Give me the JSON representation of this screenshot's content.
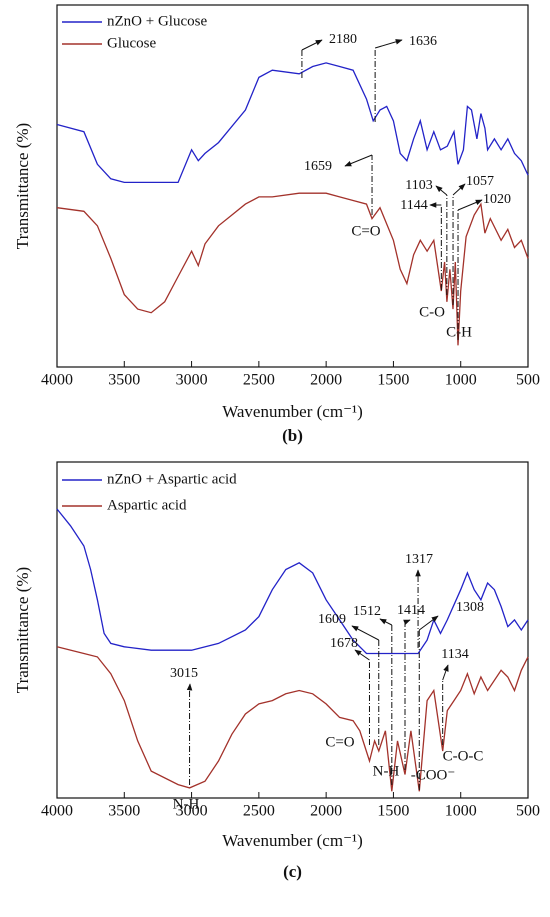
{
  "chart_data": [
    {
      "type": "line",
      "xlabel": "Wavenumber (cm⁻¹)",
      "ylabel": "Transmittance (%)",
      "caption": "(b)",
      "xlim": [
        4000,
        500
      ],
      "ylim": [
        0,
        100
      ],
      "xticks": [
        4000,
        3500,
        3000,
        2500,
        2000,
        1500,
        1000,
        500
      ],
      "series": [
        {
          "name": "nZnO + Glucose",
          "color": "#2323c8",
          "x": [
            4000,
            3800,
            3700,
            3600,
            3500,
            3100,
            3000,
            2950,
            2900,
            2800,
            2600,
            2500,
            2400,
            2200,
            2100,
            2000,
            1900,
            1800,
            1700,
            1650,
            1600,
            1550,
            1500,
            1450,
            1400,
            1350,
            1300,
            1250,
            1200,
            1150,
            1100,
            1050,
            1020,
            980,
            950,
            920,
            880,
            850,
            820,
            800,
            750,
            700,
            650,
            600,
            550,
            500
          ],
          "values": [
            67,
            65,
            56,
            52,
            51,
            51,
            60,
            57,
            59,
            62,
            71,
            80,
            82,
            81,
            83,
            84,
            83,
            82,
            74,
            68,
            71,
            72,
            68,
            59,
            57,
            63,
            68,
            60,
            65,
            60,
            61,
            65,
            56,
            60,
            72,
            71,
            63,
            70,
            66,
            60,
            63,
            60,
            63,
            59,
            57,
            53
          ]
        },
        {
          "name": "Glucose",
          "color": "#a3322b",
          "x": [
            4000,
            3800,
            3700,
            3600,
            3500,
            3400,
            3300,
            3200,
            3100,
            3000,
            2950,
            2900,
            2800,
            2700,
            2600,
            2500,
            2400,
            2200,
            2000,
            1900,
            1800,
            1700,
            1659,
            1600,
            1500,
            1450,
            1400,
            1350,
            1300,
            1250,
            1200,
            1144,
            1120,
            1103,
            1080,
            1057,
            1040,
            1020,
            1000,
            960,
            900,
            850,
            820,
            780,
            700,
            650,
            600,
            550,
            500
          ],
          "values": [
            44,
            43,
            39,
            30,
            20,
            16,
            15,
            18,
            25,
            32,
            28,
            34,
            39,
            42,
            45,
            47,
            47,
            48,
            48,
            47,
            46,
            45,
            41,
            44,
            35,
            27,
            23,
            31,
            35,
            32,
            35,
            21,
            29,
            18,
            27,
            16,
            29,
            6,
            21,
            36,
            42,
            45,
            37,
            41,
            35,
            38,
            33,
            35,
            30
          ]
        }
      ],
      "peaks": [
        2180,
        1636,
        1659,
        1144,
        1103,
        1057,
        1020
      ],
      "annotations": [
        "C=O",
        "C-O",
        "C-H"
      ]
    },
    {
      "type": "line",
      "xlabel": "Wavenumber (cm⁻¹)",
      "ylabel": "Transmittance (%)",
      "caption": "(c)",
      "xlim": [
        4000,
        500
      ],
      "ylim": [
        0,
        100
      ],
      "xticks": [
        4000,
        3500,
        3000,
        2500,
        2000,
        1500,
        1000,
        500
      ],
      "series": [
        {
          "name": "nZnO + Aspartic acid",
          "color": "#2323c8",
          "x": [
            4000,
            3900,
            3800,
            3750,
            3700,
            3650,
            3600,
            3500,
            3300,
            3000,
            2800,
            2600,
            2500,
            2400,
            2300,
            2200,
            2100,
            2000,
            1900,
            1800,
            1700,
            1600,
            1400,
            1317,
            1250,
            1200,
            1150,
            1100,
            1000,
            950,
            900,
            850,
            800,
            750,
            700,
            650,
            600,
            550,
            500
          ],
          "values": [
            86,
            81,
            75,
            68,
            59,
            49,
            46,
            45,
            44,
            44,
            46,
            50,
            54,
            62,
            68,
            70,
            67,
            59,
            53,
            47,
            43,
            43,
            43,
            43,
            47,
            53,
            49,
            53,
            62,
            67,
            62,
            59,
            64,
            62,
            57,
            51,
            53,
            50,
            53
          ]
        },
        {
          "name": "Aspartic acid",
          "color": "#a3322b",
          "x": [
            4000,
            3800,
            3700,
            3600,
            3500,
            3400,
            3300,
            3100,
            3015,
            2900,
            2800,
            2700,
            2600,
            2500,
            2400,
            2300,
            2200,
            2100,
            2000,
            1900,
            1800,
            1750,
            1678,
            1640,
            1609,
            1560,
            1512,
            1470,
            1414,
            1370,
            1308,
            1250,
            1200,
            1134,
            1100,
            1050,
            1000,
            950,
            900,
            850,
            800,
            700,
            650,
            600,
            550,
            500
          ],
          "values": [
            45,
            43,
            42,
            37,
            29,
            17,
            8,
            4,
            3,
            5,
            11,
            19,
            25,
            28,
            29,
            31,
            32,
            31,
            28,
            24,
            23,
            20,
            11,
            17,
            14,
            20,
            2,
            17,
            7,
            20,
            2,
            29,
            32,
            14,
            26,
            29,
            32,
            37,
            31,
            36,
            32,
            38,
            36,
            32,
            38,
            42
          ]
        }
      ],
      "peaks": [
        1317,
        3015,
        1678,
        1609,
        1512,
        1414,
        1308,
        1134
      ],
      "annotations": [
        "C=O",
        "N-H",
        "N-H",
        "-COO⁻",
        "C-O-C"
      ]
    }
  ]
}
